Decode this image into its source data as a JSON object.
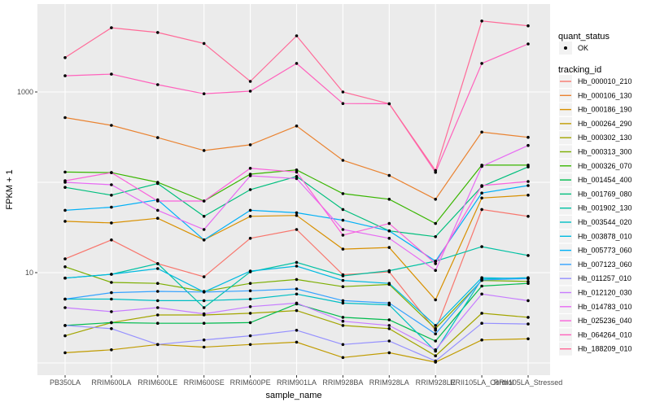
{
  "chart_data": {
    "type": "line",
    "title": "",
    "xlabel": "sample_name",
    "ylabel": "FPKM + 1",
    "y_scale": "log10",
    "ylim": [
      0.9,
      8000
    ],
    "grid": true,
    "panel_bg": "#EBEBEB",
    "grid_color": "#FFFFFF",
    "point_color": "#000000",
    "y_ticks": [
      {
        "value": 10,
        "label": "10"
      },
      {
        "value": 1000,
        "label": "1000"
      }
    ],
    "y_gridline_values": [
      1,
      10,
      100,
      1000
    ],
    "categories": [
      "PB350LA",
      "RRIM600LA",
      "RRIM600LE",
      "RRIM600SE",
      "RRIM600PE",
      "RRIM901LA",
      "RRIM928BA",
      "RRIM928LA",
      "RRIM928LE",
      "RRII105LA_Control",
      "RRII105LA_Stressed"
    ],
    "legend": {
      "position": "right",
      "quant_status_title": "quant_status",
      "quant_status_items": [
        {
          "label": "OK",
          "marker": "point",
          "color": "#000000"
        }
      ],
      "tracking_id_title": "tracking_id"
    },
    "series": [
      {
        "name": "Hb_000010_210",
        "color": "#F8766D",
        "values": [
          14.2,
          23,
          12.6,
          9.0,
          24,
          30,
          9.5,
          10.2,
          2.3,
          50,
          42
        ]
      },
      {
        "name": "Hb_000106_130",
        "color": "#EA8331",
        "values": [
          520,
          427,
          312,
          225,
          260,
          420,
          175,
          119,
          65,
          360,
          315
        ]
      },
      {
        "name": "Hb_000186_190",
        "color": "#D89000",
        "values": [
          37,
          35.5,
          40,
          23,
          42,
          43,
          18.2,
          19,
          5.0,
          67,
          72
        ]
      },
      {
        "name": "Hb_000264_290",
        "color": "#C09B00",
        "values": [
          1.3,
          1.4,
          1.6,
          1.5,
          1.6,
          1.7,
          1.15,
          1.3,
          1.02,
          1.8,
          1.85
        ]
      },
      {
        "name": "Hb_000302_130",
        "color": "#A3A500",
        "values": [
          2.0,
          2.8,
          3.4,
          3.4,
          3.55,
          3.8,
          2.6,
          2.4,
          1.2,
          3.55,
          3.2
        ]
      },
      {
        "name": "Hb_000313_300",
        "color": "#7CAE00",
        "values": [
          11.6,
          7.8,
          7.6,
          6.2,
          7.6,
          8.4,
          7.0,
          7.4,
          2.4,
          8.2,
          8.0
        ]
      },
      {
        "name": "Hb_000326_070",
        "color": "#39B600",
        "values": [
          130,
          128,
          100,
          62,
          123,
          137,
          75,
          65,
          35,
          155,
          155
        ]
      },
      {
        "name": "Hb_001454_400",
        "color": "#00BB4E",
        "values": [
          2.6,
          2.8,
          2.75,
          2.75,
          2.8,
          4.5,
          3.2,
          3.0,
          1.75,
          7.1,
          7.6
        ]
      },
      {
        "name": "Hb_001769_080",
        "color": "#00BF7D",
        "values": [
          88,
          72,
          97,
          42,
          83,
          116,
          50,
          29,
          25,
          90,
          148
        ]
      },
      {
        "name": "Hb_001902_130",
        "color": "#00C1A3",
        "values": [
          8.7,
          9.6,
          12.6,
          4.1,
          10.2,
          13,
          9.2,
          10.5,
          13.4,
          19.4,
          15.5
        ]
      },
      {
        "name": "Hb_003544_020",
        "color": "#00BFC4",
        "values": [
          5.1,
          5.1,
          4.9,
          4.9,
          5.1,
          5.8,
          4.6,
          4.4,
          1.35,
          8.5,
          8.8
        ]
      },
      {
        "name": "Hb_003878_010",
        "color": "#00BAE0",
        "values": [
          8.7,
          9.6,
          11.1,
          6.1,
          10.4,
          11.8,
          8.2,
          7.6,
          2.6,
          8.8,
          8.6
        ]
      },
      {
        "name": "Hb_005773_060",
        "color": "#00B0F6",
        "values": [
          49,
          53,
          64,
          23,
          49,
          46,
          38,
          29,
          13.4,
          76,
          92
        ]
      },
      {
        "name": "Hb_007123_060",
        "color": "#35A2FF",
        "values": [
          5.1,
          6.0,
          6.2,
          6.1,
          6.3,
          6.6,
          4.9,
          4.6,
          2.1,
          8.3,
          8.6
        ]
      },
      {
        "name": "Hb_011257_010",
        "color": "#9590FF",
        "values": [
          2.6,
          2.4,
          1.6,
          1.8,
          2.0,
          2.3,
          1.6,
          1.75,
          1.05,
          2.75,
          2.7
        ]
      },
      {
        "name": "Hb_012120_030",
        "color": "#C77CFF",
        "values": [
          4.1,
          3.7,
          4.1,
          3.5,
          4.2,
          4.6,
          2.9,
          2.6,
          1.4,
          5.8,
          4.9
        ]
      },
      {
        "name": "Hb_014783_010",
        "color": "#E76BF3",
        "values": [
          100,
          94,
          49,
          30,
          118,
          110,
          30,
          24,
          10.6,
          150,
          256
        ]
      },
      {
        "name": "Hb_025236_040",
        "color": "#FA62DB",
        "values": [
          104,
          128,
          62,
          62,
          143,
          130,
          26,
          35,
          12.6,
          92,
          102
        ]
      },
      {
        "name": "Hb_064264_010",
        "color": "#FF62BC",
        "values": [
          1510,
          1575,
          1205,
          955,
          1020,
          2070,
          745,
          740,
          129,
          2070,
          3400
        ]
      },
      {
        "name": "Hb_188209_010",
        "color": "#FF6A98",
        "values": [
          2400,
          5140,
          4560,
          3440,
          1310,
          4180,
          1000,
          740,
          135,
          6100,
          5400
        ]
      }
    ]
  }
}
